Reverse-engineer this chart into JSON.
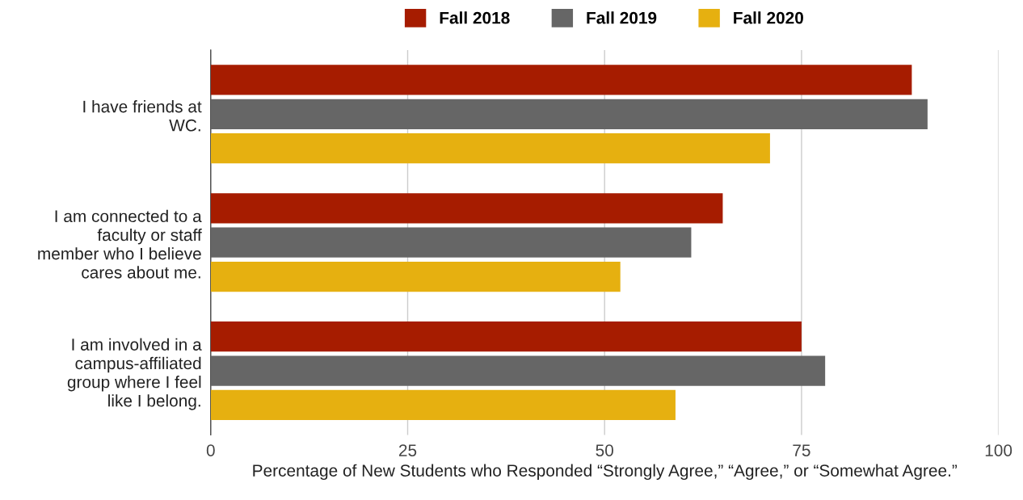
{
  "chart_data": {
    "type": "bar",
    "orientation": "horizontal",
    "xlabel": "Percentage of New Students who Responded “Strongly Agree,” “Agree,” or “Somewhat Agree.”",
    "categories": [
      "I have friends at WC.",
      "I am connected to a faculty or staff member who I believe cares about me.",
      "I am involved in a campus-affiliated group where I feel like I belong."
    ],
    "series": [
      {
        "name": "Fall 2018",
        "color": "#a61c00",
        "values": [
          89,
          65,
          75
        ]
      },
      {
        "name": "Fall 2019",
        "color": "#666666",
        "values": [
          91,
          61,
          78
        ]
      },
      {
        "name": "Fall 2020",
        "color": "#e6b010",
        "values": [
          71,
          52,
          59
        ]
      }
    ],
    "xlim": [
      0,
      100
    ],
    "xticks": [
      0,
      25,
      50,
      75,
      100
    ],
    "grid": "x",
    "legend": "top"
  }
}
